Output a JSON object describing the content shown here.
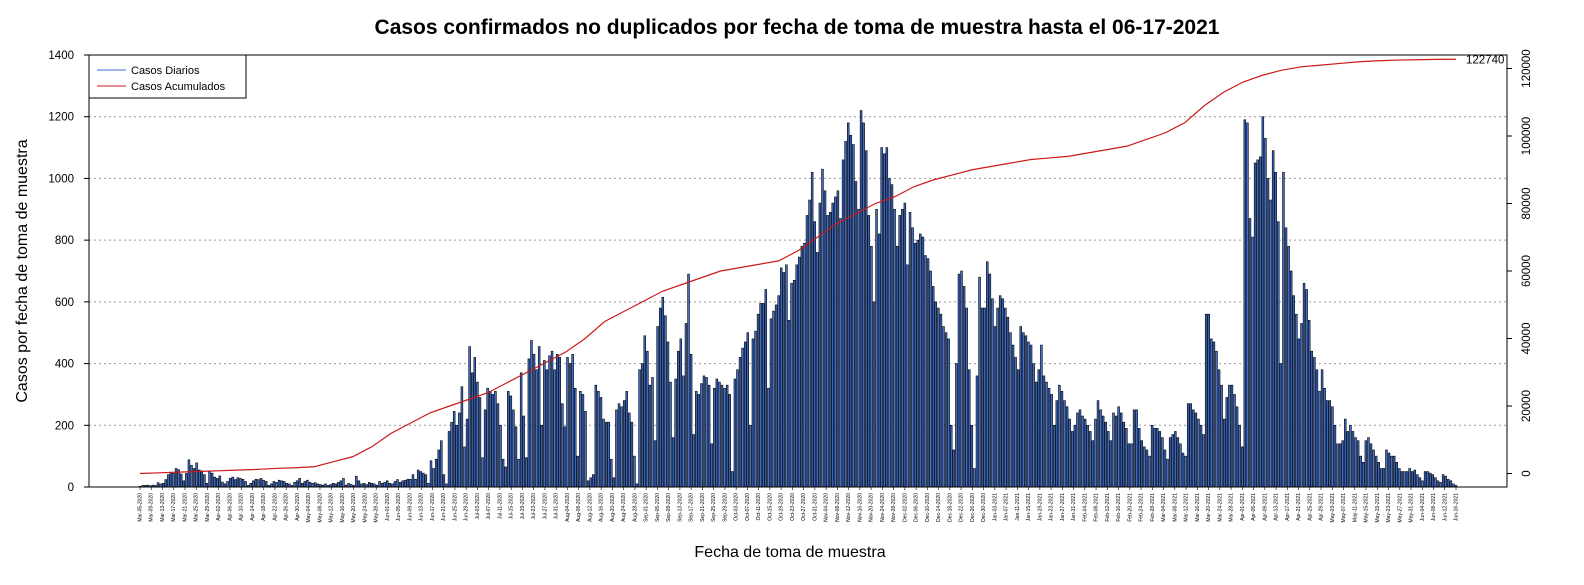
{
  "chart_data": {
    "type": "bar",
    "title": "Casos confirmados no duplicados por fecha de toma de muestra hasta el 06-17-2021",
    "xlabel": "Fecha de toma de muestra",
    "ylabel": "Casos por fecha de toma de muestra",
    "ylim": [
      0,
      1400
    ],
    "y_ticks": [
      0,
      200,
      400,
      600,
      800,
      1000,
      1200,
      1400
    ],
    "y2lim": [
      -4000,
      124000
    ],
    "y2_ticks": [
      0,
      20000,
      40000,
      60000,
      80000,
      100000,
      120000
    ],
    "grid": "horizontal dotted",
    "legend_position": "top-left",
    "colors": {
      "daily": "#3f6fd1",
      "daily_edge": "#000000",
      "cumulative": "#cc1a1a",
      "grid": "#999999"
    },
    "series": [
      {
        "name": "Casos Diarios",
        "kind": "bar",
        "axis": "left",
        "values": [
          2,
          5,
          5,
          6,
          4,
          6,
          5,
          14,
          10,
          12,
          24,
          40,
          46,
          44,
          60,
          56,
          42,
          20,
          44,
          88,
          70,
          60,
          78,
          55,
          52,
          40,
          12,
          50,
          45,
          32,
          28,
          36,
          16,
          10,
          18,
          28,
          32,
          24,
          30,
          28,
          25,
          18,
          5,
          12,
          20,
          25,
          24,
          28,
          22,
          18,
          5,
          10,
          18,
          15,
          22,
          20,
          18,
          12,
          10,
          5,
          15,
          20,
          28,
          12,
          18,
          22,
          15,
          12,
          14,
          10,
          8,
          6,
          10,
          5,
          8,
          12,
          10,
          15,
          20,
          28,
          6,
          12,
          8,
          5,
          35,
          20,
          10,
          12,
          8,
          15,
          12,
          10,
          6,
          18,
          12,
          15,
          20,
          12,
          10,
          18,
          24,
          15,
          20,
          22,
          25,
          25,
          40,
          25,
          55,
          50,
          45,
          40,
          12,
          85,
          60,
          90,
          120,
          150,
          40,
          10,
          180,
          210,
          245,
          200,
          240,
          325,
          130,
          220,
          455,
          370,
          420,
          340,
          290,
          95,
          250,
          320,
          310,
          300,
          310,
          270,
          200,
          90,
          65,
          310,
          295,
          250,
          195,
          90,
          370,
          230,
          95,
          415,
          475,
          430,
          380,
          455,
          200,
          410,
          380,
          425,
          440,
          380,
          430,
          420,
          270,
          195,
          420,
          400,
          430,
          320,
          100,
          310,
          300,
          245,
          20,
          30,
          40,
          330,
          310,
          290,
          220,
          210,
          210,
          90,
          30,
          250,
          270,
          260,
          280,
          310,
          240,
          210,
          100,
          10,
          380,
          400,
          490,
          440,
          330,
          355,
          150,
          520,
          580,
          615,
          555,
          470,
          340,
          160,
          350,
          440,
          480,
          360,
          530,
          690,
          430,
          170,
          310,
          300,
          335,
          360,
          355,
          330,
          140,
          320,
          350,
          340,
          330,
          320,
          330,
          300,
          50,
          350,
          380,
          420,
          450,
          470,
          500,
          200,
          480,
          505,
          560,
          595,
          595,
          640,
          320,
          545,
          570,
          590,
          620,
          710,
          695,
          720,
          540,
          660,
          670,
          720,
          745,
          780,
          790,
          880,
          930,
          1020,
          860,
          760,
          920,
          1030,
          960,
          880,
          890,
          920,
          940,
          960,
          870,
          1060,
          1120,
          1180,
          1140,
          1110,
          990,
          900,
          1220,
          1180,
          1090,
          880,
          780,
          600,
          900,
          820,
          1100,
          1080,
          1100,
          1000,
          980,
          900,
          780,
          880,
          900,
          920,
          720,
          890,
          840,
          790,
          800,
          820,
          810,
          750,
          740,
          700,
          650,
          600,
          580,
          560,
          520,
          500,
          480,
          200,
          120,
          400,
          690,
          700,
          650,
          580,
          380,
          200,
          60,
          360,
          680,
          580,
          580,
          730,
          690,
          610,
          520,
          580,
          620,
          610,
          580,
          550,
          500,
          460,
          420,
          380,
          520,
          500,
          490,
          470,
          460,
          400,
          340,
          380,
          460,
          360,
          340,
          320,
          300,
          200,
          280,
          330,
          310,
          280,
          260,
          220,
          180,
          200,
          240,
          250,
          230,
          220,
          200,
          180,
          150,
          220,
          280,
          250,
          230,
          210,
          180,
          150,
          240,
          230,
          260,
          240,
          210,
          190,
          140,
          140,
          250,
          250,
          190,
          150,
          130,
          120,
          100,
          200,
          190,
          190,
          180,
          160,
          120,
          90,
          160,
          170,
          180,
          160,
          140,
          110,
          100,
          270,
          270,
          250,
          240,
          220,
          200,
          170,
          560,
          560,
          480,
          470,
          440,
          380,
          330,
          220,
          290,
          330,
          330,
          300,
          260,
          200,
          130,
          1190,
          1180,
          870,
          810,
          1050,
          1060,
          1070,
          1200,
          1130,
          1000,
          930,
          1090,
          1020,
          860,
          400,
          1020,
          840,
          780,
          700,
          620,
          560,
          480,
          530,
          660,
          640,
          540,
          440,
          420,
          380,
          310,
          380,
          320,
          280,
          280,
          260,
          200,
          140,
          140,
          150,
          220,
          180,
          200,
          180,
          160,
          150,
          100,
          80,
          150,
          160,
          140,
          120,
          100,
          80,
          60,
          60,
          120,
          110,
          100,
          100,
          80,
          60,
          50,
          50,
          50,
          60,
          50,
          55,
          40,
          30,
          20,
          50,
          50,
          45,
          40,
          30,
          20,
          15,
          40,
          35,
          25,
          20,
          10,
          5
        ]
      },
      {
        "name": "Casos Acumulados",
        "kind": "line",
        "axis": "right",
        "last_value_label": "122740",
        "values": [
          0,
          200,
          400,
          600,
          800,
          1000,
          1200,
          1500,
          1700,
          2000,
          3500,
          5000,
          8000,
          12000,
          15000,
          18000,
          20000,
          22000,
          24000,
          27000,
          30000,
          33000,
          36000,
          40000,
          45000,
          48000,
          51000,
          54000,
          56000,
          58000,
          60000,
          61000,
          62000,
          63000,
          66000,
          70000,
          74000,
          77000,
          80000,
          82000,
          85000,
          87000,
          88500,
          90000,
          91000,
          92000,
          93000,
          93500,
          94000,
          95000,
          96000,
          97000,
          99000,
          101000,
          104000,
          109000,
          113000,
          116000,
          118000,
          119500,
          120500,
          121000,
          121500,
          122000,
          122300,
          122500,
          122600,
          122700,
          122740
        ]
      }
    ],
    "date_labels": [
      "Mar-05-2020",
      "Mar-09-2020",
      "Mar-13-2020",
      "Mar-17-2020",
      "Mar-21-2020",
      "Mar-25-2020",
      "Mar-29-2020",
      "Apr-02-2020",
      "Apr-06-2020",
      "Apr-10-2020",
      "Apr-14-2020",
      "Apr-18-2020",
      "Apr-22-2020",
      "Apr-26-2020",
      "Apr-30-2020",
      "May-04-2020",
      "May-08-2020",
      "May-12-2020",
      "May-16-2020",
      "May-20-2020",
      "May-24-2020",
      "May-28-2020",
      "Jun-01-2020",
      "Jun-05-2020",
      "Jun-09-2020",
      "Jun-13-2020",
      "Jun-17-2020",
      "Jun-21-2020",
      "Jun-25-2020",
      "Jun-29-2020",
      "Jul-03-2020",
      "Jul-07-2020",
      "Jul-11-2020",
      "Jul-15-2020",
      "Jul-19-2020",
      "Jul-23-2020",
      "Jul-27-2020",
      "Jul-31-2020",
      "Aug-04-2020",
      "Aug-08-2020",
      "Aug-12-2020",
      "Aug-16-2020",
      "Aug-20-2020",
      "Aug-24-2020",
      "Aug-28-2020",
      "Sep-01-2020",
      "Sep-05-2020",
      "Sep-09-2020",
      "Sep-13-2020",
      "Sep-17-2020",
      "Sep-21-2020",
      "Sep-25-2020",
      "Sep-29-2020",
      "Oct-03-2020",
      "Oct-07-2020",
      "Oct-11-2020",
      "Oct-15-2020",
      "Oct-19-2020",
      "Oct-23-2020",
      "Oct-27-2020",
      "Oct-31-2020",
      "Nov-04-2020",
      "Nov-08-2020",
      "Nov-12-2020",
      "Nov-16-2020",
      "Nov-20-2020",
      "Nov-24-2020",
      "Nov-28-2020",
      "Dec-02-2020",
      "Dec-06-2020",
      "Dec-10-2020",
      "Dec-14-2020",
      "Dec-18-2020",
      "Dec-22-2020",
      "Dec-26-2020",
      "Dec-30-2020",
      "Jan-03-2021",
      "Jan-07-2021",
      "Jan-11-2021",
      "Jan-15-2021",
      "Jan-19-2021",
      "Jan-23-2021",
      "Jan-27-2021",
      "Jan-31-2021",
      "Feb-04-2021",
      "Feb-08-2021",
      "Feb-12-2021",
      "Feb-16-2021",
      "Feb-20-2021",
      "Feb-24-2021",
      "Feb-28-2021",
      "Mar-04-2021",
      "Mar-08-2021",
      "Mar-12-2021",
      "Mar-16-2021",
      "Mar-20-2021",
      "Mar-24-2021",
      "Mar-28-2021",
      "Apr-01-2021",
      "Apr-05-2021",
      "Apr-09-2021",
      "Apr-13-2021",
      "Apr-17-2021",
      "Apr-21-2021",
      "Apr-25-2021",
      "Apr-29-2021",
      "May-03-2021",
      "May-07-2021",
      "May-11-2021",
      "May-15-2021",
      "May-19-2021",
      "May-23-2021",
      "May-27-2021",
      "May-31-2021",
      "Jun-04-2021",
      "Jun-08-2021",
      "Jun-12-2021",
      "Jun-16-2021"
    ]
  }
}
